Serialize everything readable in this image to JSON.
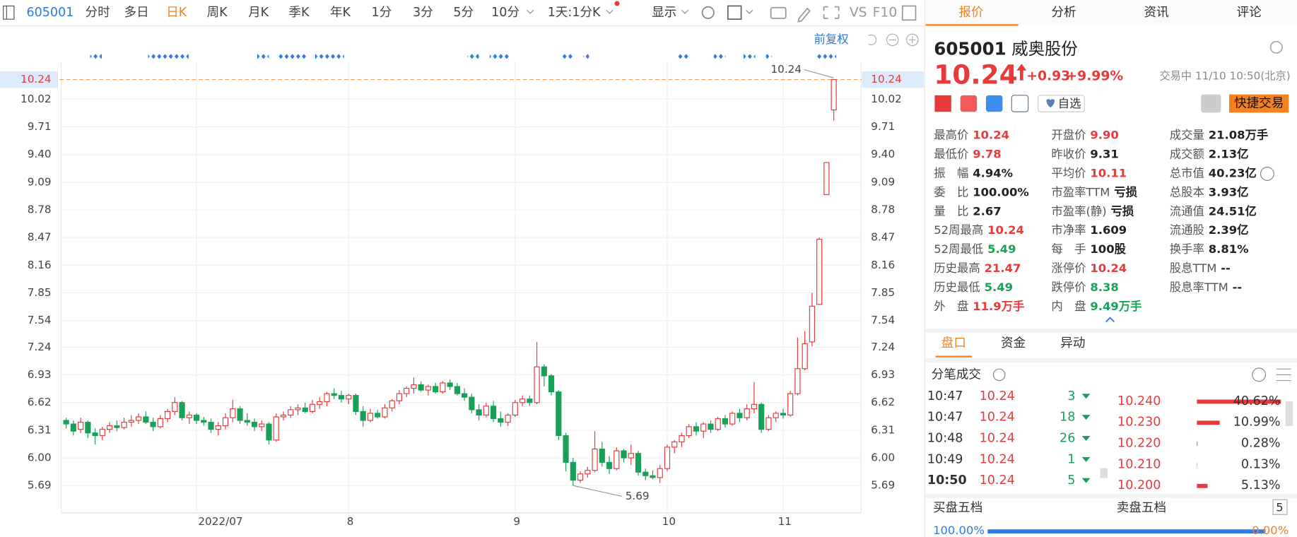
{
  "toolbar": {
    "code": "605001",
    "periods": [
      {
        "label": "分时"
      },
      {
        "label": "多日"
      },
      {
        "label": "日K",
        "active": true
      },
      {
        "label": "周K"
      },
      {
        "label": "月K"
      },
      {
        "label": "季K"
      },
      {
        "label": "年K"
      },
      {
        "label": "1分"
      },
      {
        "label": "3分"
      },
      {
        "label": "5分"
      },
      {
        "label": "10分"
      },
      {
        "label": "1天:1分K"
      }
    ],
    "display": "显示",
    "vs": "VS",
    "f10": "F10",
    "adjust": "前复权"
  },
  "chart_data": {
    "type": "candlestick",
    "up_color": "#e83a3a",
    "down_color": "#19a15a",
    "categories": [
      null,
      null,
      null,
      null,
      null,
      null,
      null,
      null,
      null,
      null,
      null,
      null,
      null,
      null,
      null,
      null,
      null,
      null,
      "2022/07",
      null,
      null,
      null,
      null,
      null,
      null,
      null,
      null,
      null,
      null,
      null,
      null,
      null,
      null,
      null,
      null,
      null,
      null,
      null,
      null,
      "8",
      null,
      null,
      null,
      null,
      null,
      null,
      null,
      null,
      null,
      null,
      null,
      null,
      null,
      null,
      null,
      null,
      null,
      null,
      null,
      null,
      null,
      null,
      "9",
      null,
      null,
      null,
      null,
      null,
      null,
      null,
      null,
      null,
      null,
      null,
      null,
      null,
      null,
      null,
      null,
      null,
      null,
      null,
      null,
      "10",
      null,
      null,
      null,
      null,
      null,
      null,
      null,
      null,
      null,
      null,
      null,
      null,
      null,
      null,
      null,
      "11",
      null,
      null,
      null,
      null,
      null,
      null,
      null
    ],
    "candles": [
      [
        6.42,
        6.45,
        6.33,
        6.38
      ],
      [
        6.38,
        6.42,
        6.25,
        6.3
      ],
      [
        6.32,
        6.45,
        6.28,
        6.4
      ],
      [
        6.4,
        6.42,
        6.22,
        6.28
      ],
      [
        6.28,
        6.33,
        6.15,
        6.25
      ],
      [
        6.25,
        6.35,
        6.2,
        6.32
      ],
      [
        6.32,
        6.4,
        6.28,
        6.36
      ],
      [
        6.36,
        6.42,
        6.3,
        6.34
      ],
      [
        6.34,
        6.45,
        6.32,
        6.4
      ],
      [
        6.4,
        6.48,
        6.35,
        6.42
      ],
      [
        6.42,
        6.5,
        6.38,
        6.46
      ],
      [
        6.46,
        6.52,
        6.38,
        6.4
      ],
      [
        6.4,
        6.45,
        6.3,
        6.35
      ],
      [
        6.35,
        6.48,
        6.33,
        6.44
      ],
      [
        6.44,
        6.55,
        6.4,
        6.52
      ],
      [
        6.52,
        6.68,
        6.48,
        6.62
      ],
      [
        6.62,
        6.64,
        6.42,
        6.45
      ],
      [
        6.45,
        6.52,
        6.38,
        6.48
      ],
      [
        6.48,
        6.5,
        6.38,
        6.42
      ],
      [
        6.42,
        6.46,
        6.36,
        6.4
      ],
      [
        6.4,
        6.44,
        6.28,
        6.32
      ],
      [
        6.32,
        6.4,
        6.25,
        6.36
      ],
      [
        6.36,
        6.5,
        6.32,
        6.45
      ],
      [
        6.45,
        6.65,
        6.4,
        6.55
      ],
      [
        6.55,
        6.58,
        6.38,
        6.42
      ],
      [
        6.42,
        6.5,
        6.36,
        6.4
      ],
      [
        6.4,
        6.44,
        6.3,
        6.35
      ],
      [
        6.35,
        6.42,
        6.3,
        6.38
      ],
      [
        6.38,
        6.4,
        6.15,
        6.2
      ],
      [
        6.2,
        6.5,
        6.18,
        6.46
      ],
      [
        6.46,
        6.52,
        6.42,
        6.48
      ],
      [
        6.48,
        6.58,
        6.45,
        6.54
      ],
      [
        6.54,
        6.6,
        6.48,
        6.56
      ],
      [
        6.56,
        6.62,
        6.5,
        6.52
      ],
      [
        6.52,
        6.65,
        6.5,
        6.6
      ],
      [
        6.6,
        6.68,
        6.55,
        6.63
      ],
      [
        6.63,
        6.74,
        6.58,
        6.72
      ],
      [
        6.72,
        6.78,
        6.66,
        6.7
      ],
      [
        6.7,
        6.75,
        6.62,
        6.66
      ],
      [
        6.66,
        6.72,
        6.6,
        6.7
      ],
      [
        6.7,
        6.72,
        6.48,
        6.52
      ],
      [
        6.52,
        6.58,
        6.35,
        6.42
      ],
      [
        6.42,
        6.55,
        6.4,
        6.5
      ],
      [
        6.5,
        6.54,
        6.44,
        6.46
      ],
      [
        6.46,
        6.6,
        6.44,
        6.56
      ],
      [
        6.56,
        6.66,
        6.52,
        6.64
      ],
      [
        6.64,
        6.76,
        6.6,
        6.72
      ],
      [
        6.72,
        6.8,
        6.68,
        6.78
      ],
      [
        6.78,
        6.9,
        6.72,
        6.82
      ],
      [
        6.82,
        6.86,
        6.74,
        6.76
      ],
      [
        6.76,
        6.82,
        6.7,
        6.8
      ],
      [
        6.8,
        6.84,
        6.72,
        6.74
      ],
      [
        6.74,
        6.86,
        6.72,
        6.84
      ],
      [
        6.84,
        6.88,
        6.76,
        6.8
      ],
      [
        6.8,
        6.84,
        6.7,
        6.72
      ],
      [
        6.72,
        6.78,
        6.64,
        6.68
      ],
      [
        6.68,
        6.72,
        6.5,
        6.54
      ],
      [
        6.54,
        6.6,
        6.42,
        6.48
      ],
      [
        6.48,
        6.62,
        6.45,
        6.58
      ],
      [
        6.58,
        6.64,
        6.4,
        6.44
      ],
      [
        6.44,
        6.52,
        6.35,
        6.4
      ],
      [
        6.4,
        6.5,
        6.36,
        6.48
      ],
      [
        6.48,
        6.65,
        6.46,
        6.62
      ],
      [
        6.62,
        6.7,
        6.58,
        6.66
      ],
      [
        6.66,
        6.7,
        6.58,
        6.62
      ],
      [
        6.62,
        7.3,
        6.6,
        7.02
      ],
      [
        7.02,
        7.05,
        6.8,
        6.92
      ],
      [
        6.92,
        6.94,
        6.7,
        6.74
      ],
      [
        6.74,
        6.76,
        6.2,
        6.25
      ],
      [
        6.25,
        6.28,
        5.85,
        5.95
      ],
      [
        5.95,
        6.0,
        5.69,
        5.75
      ],
      [
        5.75,
        5.85,
        5.72,
        5.82
      ],
      [
        5.82,
        5.9,
        5.78,
        5.86
      ],
      [
        5.86,
        6.3,
        5.84,
        6.1
      ],
      [
        6.1,
        6.18,
        5.9,
        5.95
      ],
      [
        5.95,
        6.02,
        5.82,
        5.88
      ],
      [
        5.88,
        6.12,
        5.86,
        6.08
      ],
      [
        6.08,
        6.1,
        5.95,
        6.0
      ],
      [
        6.0,
        6.15,
        5.92,
        6.05
      ],
      [
        6.05,
        6.08,
        5.8,
        5.84
      ],
      [
        5.84,
        5.88,
        5.75,
        5.8
      ],
      [
        5.8,
        5.86,
        5.76,
        5.78
      ],
      [
        5.78,
        5.92,
        5.72,
        5.88
      ],
      [
        5.88,
        6.15,
        5.85,
        6.12
      ],
      [
        6.12,
        6.2,
        6.05,
        6.18
      ],
      [
        6.18,
        6.28,
        6.12,
        6.25
      ],
      [
        6.25,
        6.38,
        6.22,
        6.35
      ],
      [
        6.35,
        6.4,
        6.25,
        6.3
      ],
      [
        6.3,
        6.4,
        6.22,
        6.38
      ],
      [
        6.38,
        6.42,
        6.28,
        6.32
      ],
      [
        6.32,
        6.46,
        6.3,
        6.44
      ],
      [
        6.44,
        6.48,
        6.34,
        6.38
      ],
      [
        6.38,
        6.52,
        6.36,
        6.5
      ],
      [
        6.5,
        6.55,
        6.4,
        6.45
      ],
      [
        6.45,
        6.6,
        6.42,
        6.55
      ],
      [
        6.55,
        6.85,
        6.5,
        6.6
      ],
      [
        6.6,
        6.62,
        6.28,
        6.32
      ],
      [
        6.32,
        6.48,
        6.3,
        6.45
      ],
      [
        6.45,
        6.52,
        6.4,
        6.5
      ],
      [
        6.5,
        6.55,
        6.44,
        6.48
      ],
      [
        6.48,
        6.75,
        6.46,
        6.72
      ],
      [
        6.72,
        7.35,
        6.7,
        7.0
      ],
      [
        7.0,
        7.42,
        6.98,
        7.28
      ],
      [
        7.3,
        7.85,
        7.25,
        7.7
      ],
      [
        7.72,
        8.47,
        7.72,
        8.45
      ],
      [
        8.95,
        9.31,
        8.95,
        9.31
      ],
      [
        9.9,
        10.24,
        9.78,
        10.24
      ]
    ],
    "ylim": [
      5.6,
      10.3
    ],
    "yticks": [
      10.02,
      9.71,
      {
        "value": 9.4,
        "label": "9.40"
      },
      9.09,
      8.78,
      8.47,
      8.16,
      7.85,
      7.54,
      7.24,
      6.93,
      6.62,
      6.31,
      {
        "value": 6,
        "label": "6.00"
      },
      5.69
    ],
    "last_price": 10.24,
    "high_note": 10.24,
    "low_note": 5.69,
    "grid": true
  },
  "tabs": [
    "报价",
    "分析",
    "资讯",
    "评论"
  ],
  "quote": {
    "code": "605001",
    "name": "威奥股份",
    "price": "10.24",
    "change": "+0.93",
    "change_pct": "+9.99%",
    "status": "交易中 11/10 10:50(北京)",
    "watch": "自选",
    "trade": "快捷交易",
    "stats": [
      [
        {
          "label": "最高价",
          "value": "10.24",
          "tone": "up"
        },
        {
          "label": "最低价",
          "value": "9.78",
          "tone": "up"
        },
        {
          "label": "振　幅",
          "value": "4.94%"
        },
        {
          "label": "委　比",
          "value": "100.00%"
        },
        {
          "label": "量　比",
          "value": "2.67"
        },
        {
          "label": "52周最高",
          "value": "10.24",
          "tone": "up"
        },
        {
          "label": "52周最低",
          "value": "5.49",
          "tone": "down"
        },
        {
          "label": "历史最高",
          "value": "21.47",
          "tone": "up"
        },
        {
          "label": "历史最低",
          "value": "5.49",
          "tone": "down"
        },
        {
          "label": "外　盘",
          "value": "11.9万手",
          "tone": "up"
        }
      ],
      [
        {
          "label": "开盘价",
          "value": "9.90",
          "tone": "up"
        },
        {
          "label": "昨收价",
          "value": "9.31"
        },
        {
          "label": "平均价",
          "value": "10.11",
          "tone": "up"
        },
        {
          "label": "市盈率TTM",
          "value": "亏损"
        },
        {
          "label": "市盈率(静)",
          "value": "亏损"
        },
        {
          "label": "市净率",
          "value": "1.609"
        },
        {
          "label": "每　手",
          "value": "100股"
        },
        {
          "label": "涨停价",
          "value": "10.24",
          "tone": "up"
        },
        {
          "label": "跌停价",
          "value": "8.38",
          "tone": "down"
        },
        {
          "label": "内　盘",
          "value": "9.49万手",
          "tone": "down"
        }
      ],
      [
        {
          "label": "成交量",
          "value": "21.08万手"
        },
        {
          "label": "成交额",
          "value": "2.13亿"
        },
        {
          "label": "总市值",
          "value": "40.23亿"
        },
        {
          "label": "总股本",
          "value": "3.93亿"
        },
        {
          "label": "流通值",
          "value": "24.51亿"
        },
        {
          "label": "流通股",
          "value": "2.39亿"
        },
        {
          "label": "换手率",
          "value": "8.81%"
        },
        {
          "label": "股息TTM",
          "value": "--"
        },
        {
          "label": "股息率TTM",
          "value": "--"
        }
      ]
    ]
  },
  "subtabs": [
    "盘口",
    "资金",
    "异动"
  ],
  "ticks_title": "分笔成交",
  "trades": [
    [
      "10:47",
      "10.24",
      "3"
    ],
    [
      "10:47",
      "10.24",
      "18"
    ],
    [
      "10:48",
      "10.24",
      "26"
    ],
    [
      "10:49",
      "10.24",
      "1"
    ],
    [
      "10:50",
      "10.24",
      "5"
    ]
  ],
  "book": {
    "prices": [
      "10.240",
      "10.230",
      "10.220",
      "10.210",
      "10.200"
    ],
    "shares": [
      40.62,
      10.99,
      0.28,
      0.13,
      5.13
    ],
    "labels": [
      "40.62%",
      "10.99%",
      "0.28%",
      "0.13%",
      "5.13%"
    ]
  },
  "depth": {
    "buy_title": "买盘五档",
    "sell_title": "卖盘五档",
    "levels": "5",
    "buy": "100.00%",
    "sell": "0.00%"
  }
}
